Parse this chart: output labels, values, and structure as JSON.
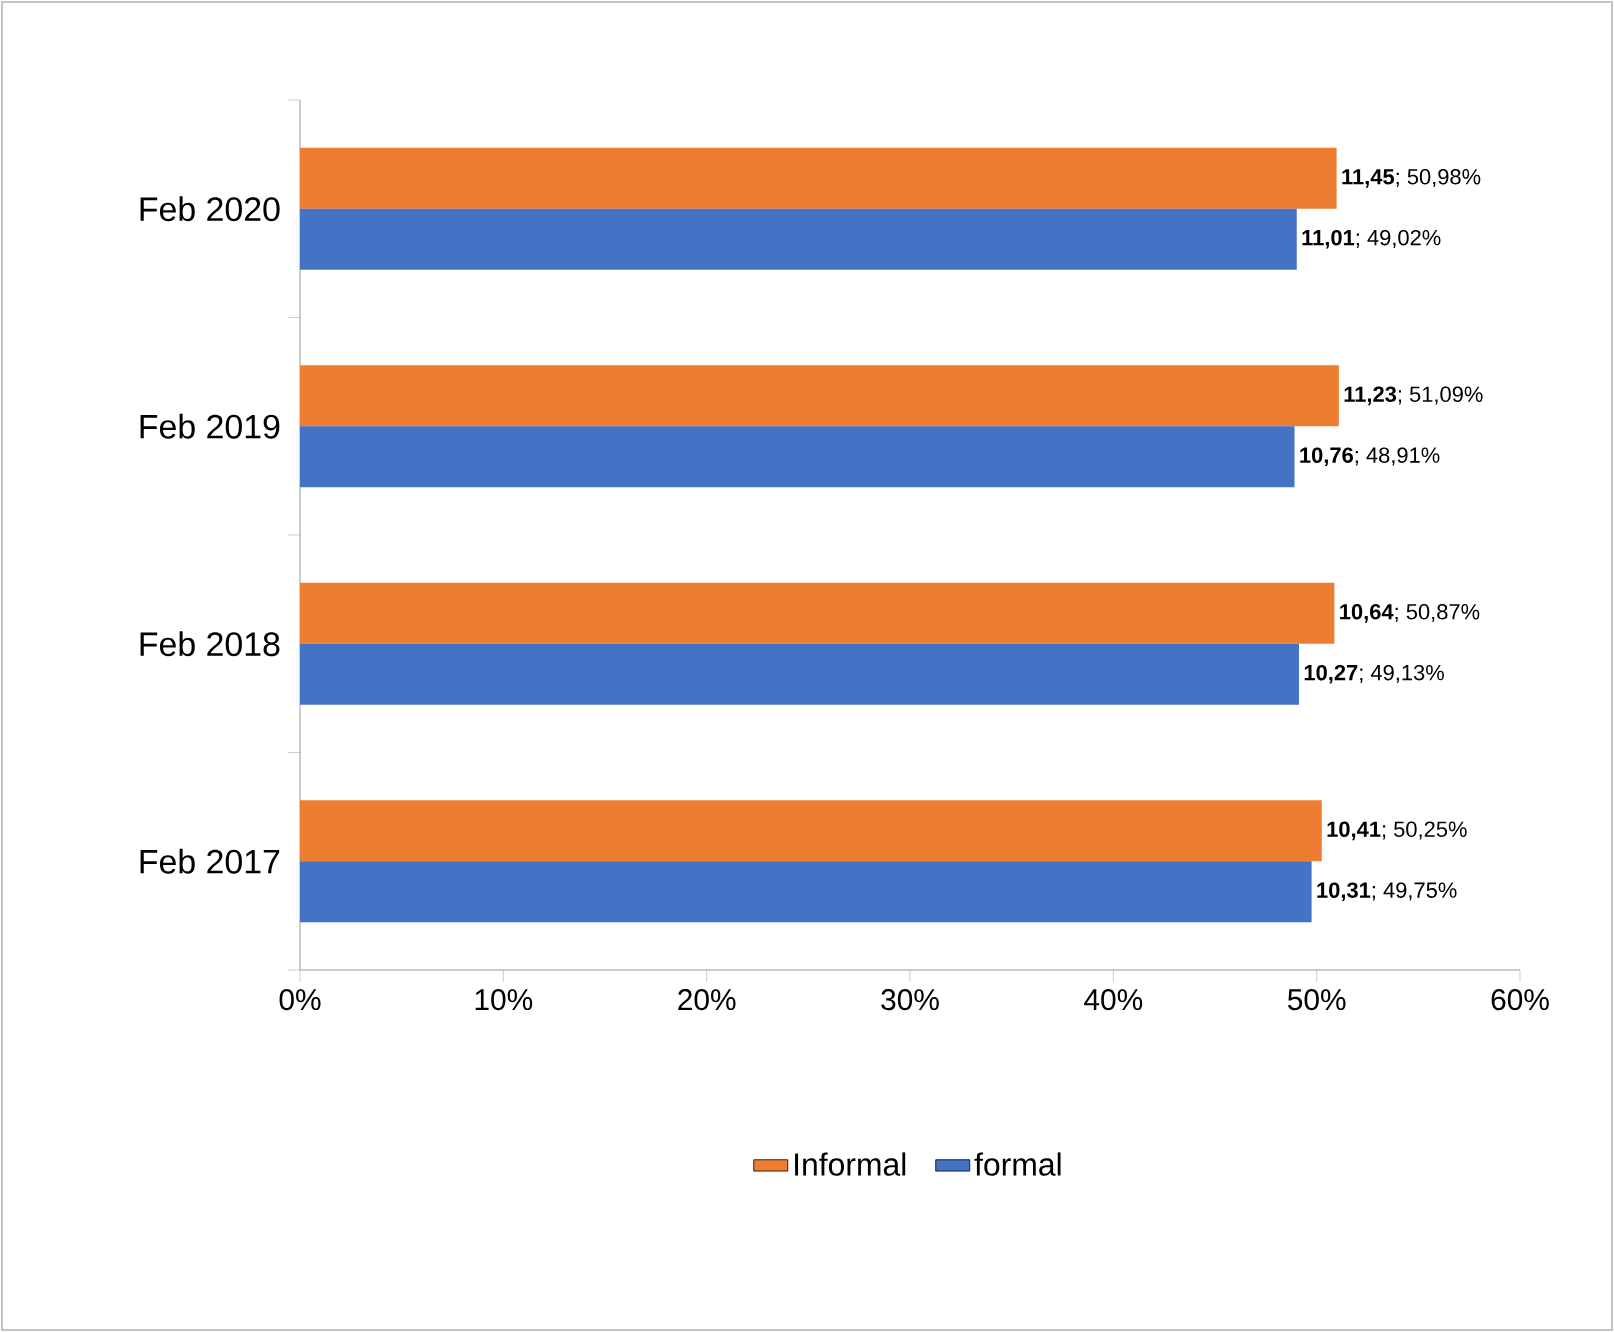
{
  "chart_data": {
    "type": "bar",
    "orientation": "horizontal",
    "categories": [
      "Feb 2020",
      "Feb 2019",
      "Feb 2018",
      "Feb 2017"
    ],
    "series": [
      {
        "name": "Informal",
        "color": "#ed7d31",
        "values": [
          50.98,
          51.09,
          50.87,
          50.25
        ],
        "value_labels": [
          "**11,45**; 50,98%",
          "**11,23**; 51,09%",
          "**10,64**; 50,87%",
          "**10,41**; 50,25%"
        ]
      },
      {
        "name": "formal",
        "color": "#4472c4",
        "values": [
          49.02,
          48.91,
          49.13,
          49.75
        ],
        "value_labels": [
          "**11,01**; 49,02%",
          "**10,76**; 48,91%",
          "**10,27**; 49,13%",
          "**10,31**; 49,75%"
        ]
      }
    ],
    "xlim": [
      0,
      60
    ],
    "xticks": [
      {
        "value": 0,
        "label": "0%"
      },
      {
        "value": 10,
        "label": "10%"
      },
      {
        "value": 20,
        "label": "20%"
      },
      {
        "value": 30,
        "label": "30%"
      },
      {
        "value": 40,
        "label": "40%"
      },
      {
        "value": 50,
        "label": "50%"
      },
      {
        "value": 60,
        "label": "60%"
      }
    ],
    "legend": "bottom"
  }
}
